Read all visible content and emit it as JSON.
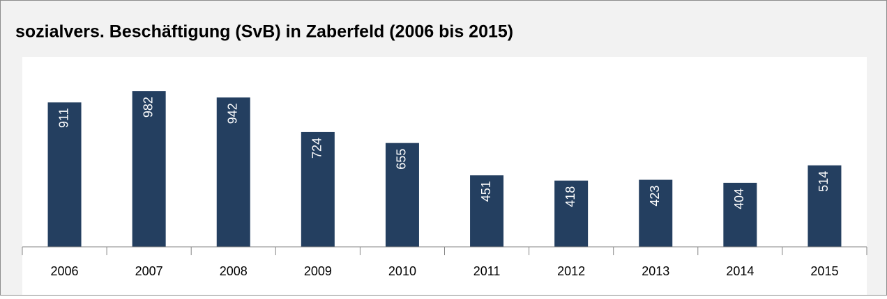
{
  "chart_data": {
    "type": "bar",
    "title": "sozialvers. Beschäftigung (SvB) in Zaberfeld (2006 bis 2015)",
    "categories": [
      "2006",
      "2007",
      "2008",
      "2009",
      "2010",
      "2011",
      "2012",
      "2013",
      "2014",
      "2015"
    ],
    "values": [
      911,
      982,
      942,
      724,
      655,
      451,
      418,
      423,
      404,
      514
    ],
    "color": "#243f60",
    "ylim": [
      0,
      1000
    ],
    "grid": false
  }
}
